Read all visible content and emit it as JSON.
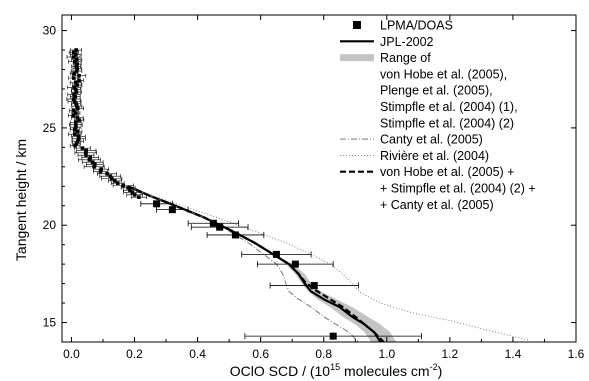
{
  "chart_data": {
    "type": "line",
    "xlabel_main": "OClO SCD / (10",
    "xlabel_sup1": "15",
    "xlabel_mid": " molecules cm",
    "xlabel_sup2": "-2",
    "xlabel_end": ")",
    "ylabel": "Tangent height / km",
    "xlim": [
      -0.03,
      1.6
    ],
    "ylim": [
      14,
      30.8
    ],
    "x_ticks": [
      0.0,
      0.2,
      0.4,
      0.6,
      0.8,
      1.0,
      1.2,
      1.4,
      1.6
    ],
    "x_tick_labels": [
      "0.0",
      "0.2",
      "0.4",
      "0.6",
      "0.8",
      "1.0",
      "1.2",
      "1.4",
      "1.6"
    ],
    "y_ticks": [
      15,
      20,
      25,
      30
    ],
    "y_tick_labels": [
      "15",
      "20",
      "25",
      "30"
    ],
    "grid": false,
    "legend_position": "top-right",
    "legend": [
      {
        "label": "LPMA/DOAS",
        "style": "square-marker"
      },
      {
        "label": "JPL-2002",
        "style": "solid-thick"
      },
      {
        "label": "Range of",
        "style": "gray-band"
      },
      {
        "label": "von Hobe et al. (2005),",
        "style": "none"
      },
      {
        "label": "Plenge et al. (2005),",
        "style": "none"
      },
      {
        "label": "Stimpfle et al. (2004) (1),",
        "style": "none"
      },
      {
        "label": "Stimpfle et al. (2004) (2)",
        "style": "none"
      },
      {
        "label": "Canty et al. (2005)",
        "style": "dash-dot"
      },
      {
        "label": "Rivière et al. (2004)",
        "style": "dotted"
      },
      {
        "label": "von Hobe et al. (2005) +",
        "style": "dashed-thick"
      },
      {
        "label": "+ Stimpfle et al. (2004) (2) +",
        "style": "none"
      },
      {
        "label": "+ Canty et al. (2005)",
        "style": "none"
      }
    ],
    "series": [
      {
        "name": "LPMA/DOAS",
        "kind": "markers",
        "points": [
          {
            "x": 0.27,
            "y": 21.1,
            "err": 0.05
          },
          {
            "x": 0.32,
            "y": 20.8,
            "err": 0.05
          },
          {
            "x": 0.45,
            "y": 20.1,
            "err": 0.08
          },
          {
            "x": 0.47,
            "y": 19.9,
            "err": 0.09
          },
          {
            "x": 0.52,
            "y": 19.5,
            "err": 0.09
          },
          {
            "x": 0.65,
            "y": 18.5,
            "err": 0.11
          },
          {
            "x": 0.71,
            "y": 18.0,
            "err": 0.12
          },
          {
            "x": 0.77,
            "y": 16.9,
            "err": 0.14
          },
          {
            "x": 0.83,
            "y": 14.3,
            "err": 0.28
          }
        ]
      },
      {
        "name": "JPL-2002",
        "kind": "solid",
        "points": [
          [
            0.18,
            22.0
          ],
          [
            0.25,
            21.5
          ],
          [
            0.33,
            21.0
          ],
          [
            0.42,
            20.4
          ],
          [
            0.51,
            19.7
          ],
          [
            0.58,
            19.1
          ],
          [
            0.64,
            18.5
          ],
          [
            0.69,
            18.0
          ],
          [
            0.72,
            17.5
          ],
          [
            0.74,
            17.0
          ],
          [
            0.76,
            16.6
          ],
          [
            0.8,
            16.2
          ],
          [
            0.85,
            15.8
          ],
          [
            0.89,
            15.3
          ],
          [
            0.93,
            14.9
          ],
          [
            0.96,
            14.5
          ],
          [
            0.98,
            14.0
          ]
        ]
      },
      {
        "name": "Range of",
        "kind": "band",
        "lower": [
          [
            0.18,
            22.0
          ],
          [
            0.25,
            21.5
          ],
          [
            0.33,
            21.0
          ],
          [
            0.42,
            20.4
          ],
          [
            0.51,
            19.7
          ],
          [
            0.58,
            19.1
          ],
          [
            0.64,
            18.5
          ],
          [
            0.68,
            18.0
          ],
          [
            0.71,
            17.5
          ],
          [
            0.73,
            17.0
          ],
          [
            0.75,
            16.6
          ],
          [
            0.78,
            16.2
          ],
          [
            0.82,
            15.8
          ],
          [
            0.86,
            15.3
          ],
          [
            0.9,
            14.9
          ],
          [
            0.93,
            14.5
          ],
          [
            0.95,
            14.0
          ]
        ],
        "upper": [
          [
            0.18,
            22.0
          ],
          [
            0.25,
            21.5
          ],
          [
            0.33,
            21.0
          ],
          [
            0.42,
            20.4
          ],
          [
            0.51,
            19.7
          ],
          [
            0.58,
            19.1
          ],
          [
            0.64,
            18.5
          ],
          [
            0.7,
            18.0
          ],
          [
            0.74,
            17.5
          ],
          [
            0.76,
            17.0
          ],
          [
            0.79,
            16.6
          ],
          [
            0.84,
            16.2
          ],
          [
            0.89,
            15.8
          ],
          [
            0.94,
            15.3
          ],
          [
            0.98,
            14.9
          ],
          [
            1.01,
            14.5
          ],
          [
            1.03,
            14.0
          ]
        ]
      },
      {
        "name": "Canty et al. (2005)",
        "kind": "dashdot",
        "points": [
          [
            0.18,
            22.0
          ],
          [
            0.25,
            21.5
          ],
          [
            0.33,
            21.0
          ],
          [
            0.42,
            20.4
          ],
          [
            0.5,
            19.7
          ],
          [
            0.56,
            19.1
          ],
          [
            0.61,
            18.5
          ],
          [
            0.65,
            18.0
          ],
          [
            0.67,
            17.5
          ],
          [
            0.68,
            17.0
          ],
          [
            0.69,
            16.6
          ],
          [
            0.72,
            16.2
          ],
          [
            0.76,
            15.8
          ],
          [
            0.8,
            15.3
          ],
          [
            0.84,
            14.9
          ],
          [
            0.88,
            14.5
          ],
          [
            0.91,
            14.0
          ]
        ]
      },
      {
        "name": "Rivière et al. (2004)",
        "kind": "dotted",
        "points": [
          [
            0.18,
            22.0
          ],
          [
            0.26,
            21.5
          ],
          [
            0.35,
            21.0
          ],
          [
            0.46,
            20.4
          ],
          [
            0.58,
            19.7
          ],
          [
            0.68,
            19.1
          ],
          [
            0.76,
            18.5
          ],
          [
            0.82,
            18.0
          ],
          [
            0.86,
            17.5
          ],
          [
            0.89,
            17.0
          ],
          [
            0.92,
            16.5
          ],
          [
            0.98,
            16.0
          ],
          [
            1.08,
            15.5
          ],
          [
            1.2,
            15.1
          ],
          [
            1.32,
            14.6
          ],
          [
            1.45,
            14.1
          ]
        ]
      },
      {
        "name": "von Hobe et al. (2005) +",
        "kind": "dashed",
        "points": [
          [
            0.18,
            22.0
          ],
          [
            0.25,
            21.5
          ],
          [
            0.33,
            21.0
          ],
          [
            0.42,
            20.4
          ],
          [
            0.51,
            19.7
          ],
          [
            0.58,
            19.1
          ],
          [
            0.64,
            18.5
          ],
          [
            0.69,
            18.0
          ],
          [
            0.72,
            17.5
          ],
          [
            0.74,
            17.1
          ],
          [
            0.77,
            16.7
          ],
          [
            0.81,
            16.3
          ],
          [
            0.86,
            15.8
          ],
          [
            0.9,
            15.3
          ],
          [
            0.93,
            14.9
          ],
          [
            0.96,
            14.5
          ],
          [
            0.99,
            14.0
          ]
        ]
      }
    ]
  }
}
